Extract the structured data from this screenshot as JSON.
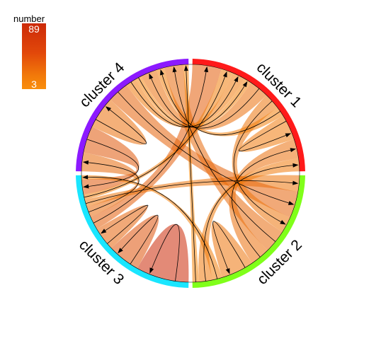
{
  "chart_data": {
    "type": "chord",
    "legend": {
      "title": "number",
      "max_label": "89",
      "min_label": "3",
      "colors": [
        "#f98e0c",
        "#cc2a08"
      ]
    },
    "sectors": [
      {
        "name": "cluster 1",
        "color": "#ff1a1a"
      },
      {
        "name": "cluster 2",
        "color": "#80ff1a"
      },
      {
        "name": "cluster 3",
        "color": "#1ae6ff"
      },
      {
        "name": "cluster 4",
        "color": "#8c1aff"
      }
    ],
    "links": [
      {
        "from": "cluster 3",
        "to": "cluster 3",
        "value": 89
      },
      {
        "from": "cluster 3",
        "to": "cluster 3",
        "value": 55
      },
      {
        "from": "cluster 3",
        "to": "cluster 3",
        "value": 40
      },
      {
        "from": "cluster 3",
        "to": "cluster 1",
        "value": 45
      },
      {
        "from": "cluster 3",
        "to": "cluster 4",
        "value": 35
      },
      {
        "from": "cluster 3",
        "to": "cluster 2",
        "value": 25
      },
      {
        "from": "cluster 3",
        "to": "cluster 1",
        "value": 18
      },
      {
        "from": "cluster 4",
        "to": "cluster 3",
        "value": 50
      },
      {
        "from": "cluster 4",
        "to": "cluster 4",
        "value": 30
      },
      {
        "from": "cluster 4",
        "to": "cluster 2",
        "value": 40
      },
      {
        "from": "cluster 4",
        "to": "cluster 1",
        "value": 20
      },
      {
        "from": "cluster 4",
        "to": "cluster 1",
        "value": 12
      },
      {
        "from": "cluster 1",
        "to": "cluster 4",
        "value": 30
      },
      {
        "from": "cluster 1",
        "to": "cluster 2",
        "value": 25
      },
      {
        "from": "cluster 1",
        "to": "cluster 4",
        "value": 15
      },
      {
        "from": "cluster 1",
        "to": "cluster 1",
        "value": 20
      },
      {
        "from": "cluster 2",
        "to": "cluster 4",
        "value": 35
      },
      {
        "from": "cluster 2",
        "to": "cluster 1",
        "value": 30
      },
      {
        "from": "cluster 2",
        "to": "cluster 2",
        "value": 25
      },
      {
        "from": "cluster 2",
        "to": "cluster 3",
        "value": 15
      },
      {
        "from": "cluster 2",
        "to": "cluster 1",
        "value": 20
      },
      {
        "from": "cluster 2",
        "to": "cluster 4",
        "value": 10
      }
    ]
  }
}
